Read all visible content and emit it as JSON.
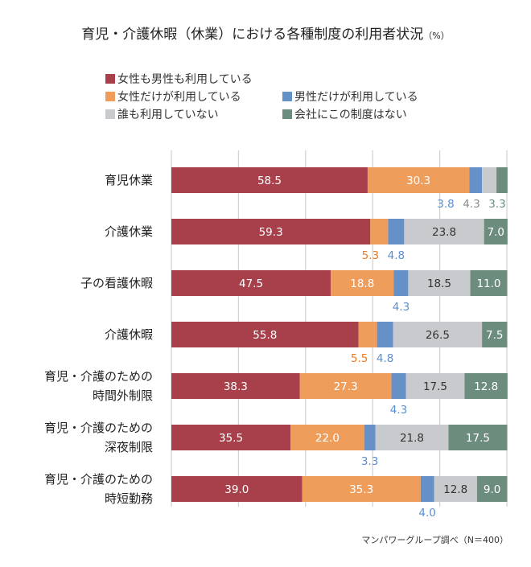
{
  "title": "育児・介護休暇（休業）における各種制度の利用者状況",
  "title_unit": "（%）",
  "source_note": "マンパワーグループ調べ（N＝400）",
  "chart_data": {
    "type": "bar",
    "orientation": "horizontal",
    "stacked": true,
    "xlim": [
      0,
      100
    ],
    "grid": true,
    "legend_position": "top",
    "categories": [
      "育児休業",
      "介護休業",
      "子の看護休暇",
      "介護休暇",
      "育児・介護のための\n時間外制限",
      "育児・介護のための\n深夜制限",
      "育児・介護のための\n時短勤務"
    ],
    "series": [
      {
        "name": "女性も男性も利用している",
        "color": "#a8404b",
        "label_color": "#8c8c8c",
        "values": [
          58.5,
          59.3,
          47.5,
          55.8,
          38.3,
          35.5,
          39.0
        ]
      },
      {
        "name": "女性だけが利用している",
        "color": "#ee9d5a",
        "label_color": "#ee7a22",
        "values": [
          30.3,
          5.3,
          18.8,
          5.5,
          27.3,
          22.0,
          35.3
        ]
      },
      {
        "name": "男性だけが利用している",
        "color": "#6590c8",
        "label_color": "#5b8ed0",
        "values": [
          3.8,
          4.8,
          4.3,
          4.8,
          4.3,
          3.3,
          4.0
        ]
      },
      {
        "name": "誰も利用していない",
        "color": "#c9cacd",
        "label_color": "#8c8c8c",
        "values": [
          4.3,
          23.8,
          18.5,
          26.5,
          17.5,
          21.8,
          12.8
        ]
      },
      {
        "name": "会社にこの制度はない",
        "color": "#6c8c7e",
        "label_color": "#6c8c7e",
        "values": [
          3.3,
          7.0,
          11.0,
          7.5,
          12.8,
          17.5,
          9.0
        ]
      }
    ]
  }
}
